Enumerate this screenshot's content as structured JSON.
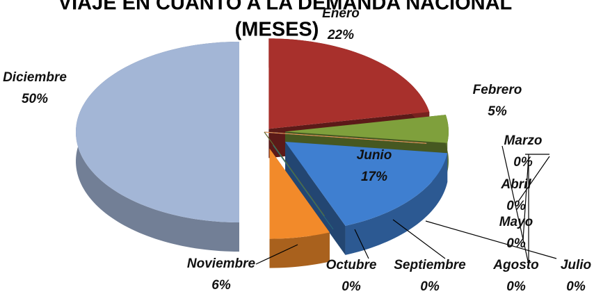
{
  "chart_data": {
    "type": "pie3d",
    "title": [
      "VIAJE EN CUANTO A LA DEMANDA NACIONAL",
      "(MESES)"
    ],
    "categories": [
      "Enero",
      "Febrero",
      "Marzo",
      "Abril",
      "Mayo",
      "Junio",
      "Julio",
      "Agosto",
      "Septiembre",
      "Octubre",
      "Noviembre",
      "Diciembre"
    ],
    "values": [
      22,
      5,
      0,
      0,
      0,
      17,
      0,
      0,
      0,
      0,
      6,
      50
    ],
    "value_labels": [
      "22%",
      "5%",
      "0%",
      "0%",
      "0%",
      "17%",
      "0%",
      "0%",
      "0%",
      "0%",
      "6%",
      "50%"
    ],
    "colors": [
      "#a8302c",
      "#7fa03c",
      "#7030a0",
      "#4bacc6",
      "#f79646",
      "#3f7fd0",
      "#2c4d75",
      "#772c2a",
      "#5f7530",
      "#276a7c",
      "#f28a2a",
      "#a3b6d6"
    ]
  }
}
